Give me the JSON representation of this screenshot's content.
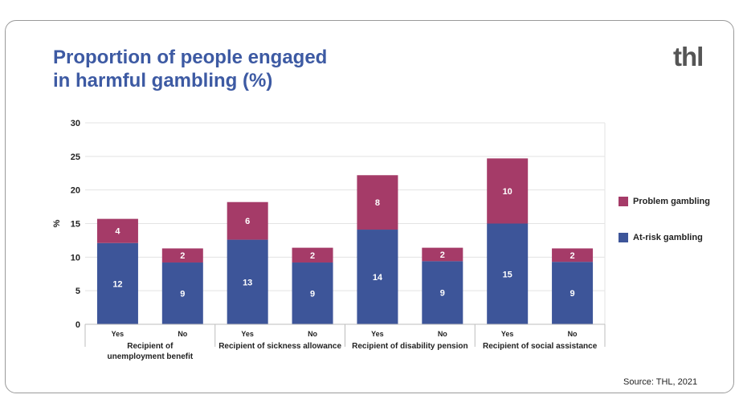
{
  "header": {
    "title_line1": "Proportion of people engaged",
    "title_line2": "in harmful gambling (%)",
    "logo_text": "thl"
  },
  "source": "Source: THL, 2021",
  "colors": {
    "at_risk": "#3d5599",
    "problem": "#a53b68",
    "title": "#3d5aa3"
  },
  "chart_data": {
    "type": "bar",
    "stacked": true,
    "title": "Proportion of people engaged in harmful gambling (%)",
    "ylabel": "%",
    "ylim": [
      0,
      30
    ],
    "yticks": [
      0,
      5,
      10,
      15,
      20,
      25,
      30
    ],
    "grid": true,
    "legend_position": "right",
    "groups": [
      {
        "label": "Recipient of\nunemployment benefit",
        "categories": [
          "Yes",
          "No"
        ]
      },
      {
        "label": "Recipient of sickness allowance",
        "categories": [
          "Yes",
          "No"
        ]
      },
      {
        "label": "Recipient of disability pension",
        "categories": [
          "Yes",
          "No"
        ]
      },
      {
        "label": "Recipient of social assistance",
        "categories": [
          "Yes",
          "No"
        ]
      }
    ],
    "categories": [
      "Yes",
      "No",
      "Yes",
      "No",
      "Yes",
      "No",
      "Yes",
      "No"
    ],
    "series": [
      {
        "name": "At-risk gambling",
        "values": [
          12,
          9,
          13,
          9,
          14,
          9,
          15,
          9
        ],
        "heights": [
          12.1,
          9.2,
          12.6,
          9.2,
          14.1,
          9.4,
          15.0,
          9.3
        ]
      },
      {
        "name": "Problem gambling",
        "values": [
          4,
          2,
          6,
          2,
          8,
          2,
          10,
          2
        ],
        "heights": [
          3.6,
          2.1,
          5.6,
          2.2,
          8.1,
          2.0,
          9.7,
          2.0
        ]
      }
    ]
  }
}
